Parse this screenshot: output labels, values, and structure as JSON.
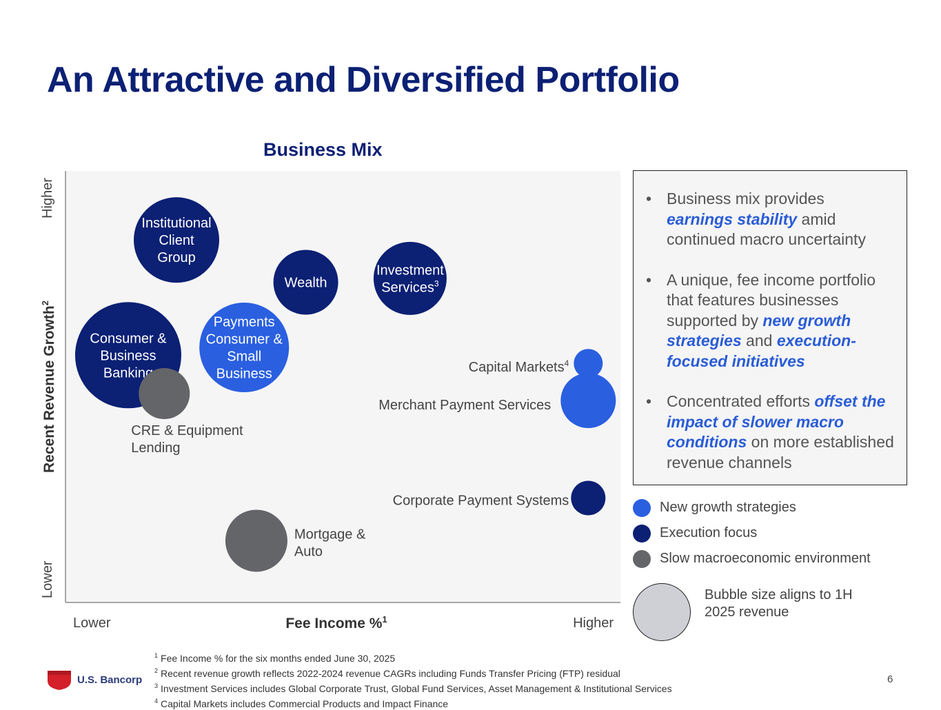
{
  "title": "An Attractive and Diversified Portfolio",
  "colors": {
    "new_growth": "#2a5fe0",
    "execution": "#0c2074",
    "slow_macro": "#646569",
    "size_reference": "#cfd0d6",
    "accent_text": "#2a5cd6"
  },
  "chart_data": {
    "type": "scatter",
    "title": "Business Mix",
    "xlabel": "Fee Income %",
    "xlabel_sup": "1",
    "ylabel": "Recent Revenue Growth",
    "ylabel_sup": "2",
    "x_ticks": [
      "Lower",
      "Higher"
    ],
    "y_ticks": [
      "Lower",
      "Higher"
    ],
    "xlim": [
      0,
      100
    ],
    "ylim": [
      0,
      100
    ],
    "grid": false,
    "bubbles": [
      {
        "label": "Institutional\nClient\nGroup",
        "sup": "",
        "x": 20,
        "y": 84,
        "size": 62,
        "category": "Execution focus",
        "label_inside": true
      },
      {
        "label": "Wealth",
        "sup": "",
        "x": 43.3,
        "y": 74.2,
        "size": 47,
        "category": "Execution focus",
        "label_inside": true
      },
      {
        "label": "Investment\nServices",
        "sup": "3",
        "x": 62.1,
        "y": 75.1,
        "size": 53,
        "category": "Execution focus",
        "label_inside": true
      },
      {
        "label": "Consumer &\nBusiness\nBanking",
        "sup": "",
        "x": 11.3,
        "y": 57.3,
        "size": 77,
        "category": "Execution focus",
        "label_inside": true
      },
      {
        "label": "Payments\nConsumer &\nSmall\nBusiness",
        "sup": "",
        "x": 32.2,
        "y": 59.1,
        "size": 65,
        "category": "New growth strategies",
        "label_inside": true
      },
      {
        "label": "CRE & Equipment\nLending",
        "sup": "",
        "x": 17.8,
        "y": 48.4,
        "size": 37,
        "category": "Slow macroeconomic environment",
        "label_inside": false
      },
      {
        "label": "Capital Markets",
        "sup": "4",
        "x": 94.2,
        "y": 55.4,
        "size": 21,
        "category": "New growth strategies",
        "label_inside": false
      },
      {
        "label": "Merchant Payment Services",
        "sup": "",
        "x": 94.2,
        "y": 46.8,
        "size": 40,
        "category": "New growth strategies",
        "label_inside": false
      },
      {
        "label": "Corporate Payment Systems",
        "sup": "",
        "x": 94.2,
        "y": 24.2,
        "size": 25,
        "category": "Execution focus",
        "label_inside": false
      },
      {
        "label": "Mortgage &\nAuto",
        "sup": "",
        "x": 34.4,
        "y": 14.3,
        "size": 45,
        "category": "Slow macroeconomic environment",
        "label_inside": false
      }
    ]
  },
  "callout": {
    "bullets": [
      [
        {
          "t": "Business mix provides "
        },
        {
          "t": "earnings stability",
          "em": true
        },
        {
          "t": " amid continued macro uncertainty"
        }
      ],
      [
        {
          "t": "A unique, fee income portfolio that features businesses supported by "
        },
        {
          "t": "new growth strategies",
          "em": true
        },
        {
          "t": " and "
        },
        {
          "t": "execution-focused initiatives",
          "em": true
        }
      ],
      [
        {
          "t": "Concentrated efforts "
        },
        {
          "t": "offset the impact of slower macro conditions",
          "em": true
        },
        {
          "t": " on more established revenue channels"
        }
      ]
    ]
  },
  "legend": [
    {
      "label": "New growth strategies",
      "color": "#2a5fe0"
    },
    {
      "label": "Execution focus",
      "color": "#0c2074"
    },
    {
      "label": "Slow macroeconomic environment",
      "color": "#646569"
    }
  ],
  "size_note": "Bubble size aligns to 1H 2025 revenue",
  "footnotes": [
    {
      "num": "1",
      "text": "Fee Income % for the six months ended June 30, 2025"
    },
    {
      "num": "2",
      "text": "Recent revenue growth reflects 2022-2024 revenue CAGRs including Funds Transfer Pricing (FTP) residual"
    },
    {
      "num": "3",
      "text": "Investment Services includes Global Corporate Trust, Global Fund Services, Asset Management & Institutional Services"
    },
    {
      "num": "4",
      "text": "Capital Markets includes Commercial Products and Impact Finance"
    }
  ],
  "logo_text": "U.S. Bancorp",
  "page_number": "6"
}
